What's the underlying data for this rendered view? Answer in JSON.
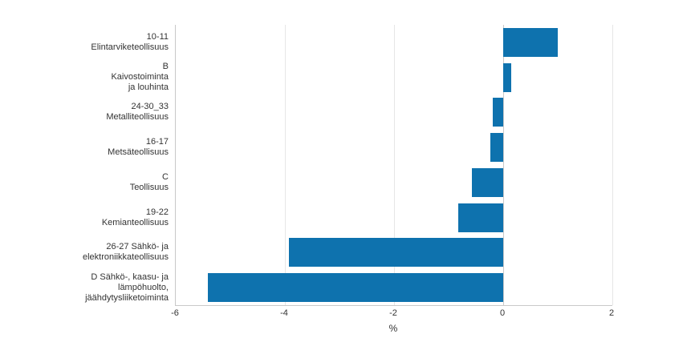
{
  "chart_data": {
    "type": "bar",
    "orientation": "horizontal",
    "title": "",
    "xlabel": "%",
    "ylabel": "",
    "xlim": [
      -6,
      2
    ],
    "xticks": [
      -6,
      -4,
      -2,
      0,
      2
    ],
    "grid": true,
    "legend": false,
    "categories": [
      "10-11\nElintarviketeollisuus",
      "B\nKaivostoiminta\nja louhinta",
      "24-30_33\nMetalliteollisuus",
      "16-17\nMetsäteollisuus",
      "C\nTeollisuus",
      "19-22\nKemianteollisuus",
      "26-27 Sähkö- ja\nelektroniikkateollisuus",
      "D Sähkö-, kaasu- ja\nlämpöhuolto,\njäähdytysliiketoiminta"
    ],
    "values": [
      1.0,
      0.15,
      -0.19,
      -0.23,
      -0.57,
      -0.83,
      -3.93,
      -5.41
    ],
    "colors": {
      "bar": "#0e72ae",
      "grid": "#e6e6e6",
      "axis": "#c9c9c9",
      "zero_line": "#c9c9c9",
      "text": "#333333",
      "background": "#ffffff"
    }
  }
}
